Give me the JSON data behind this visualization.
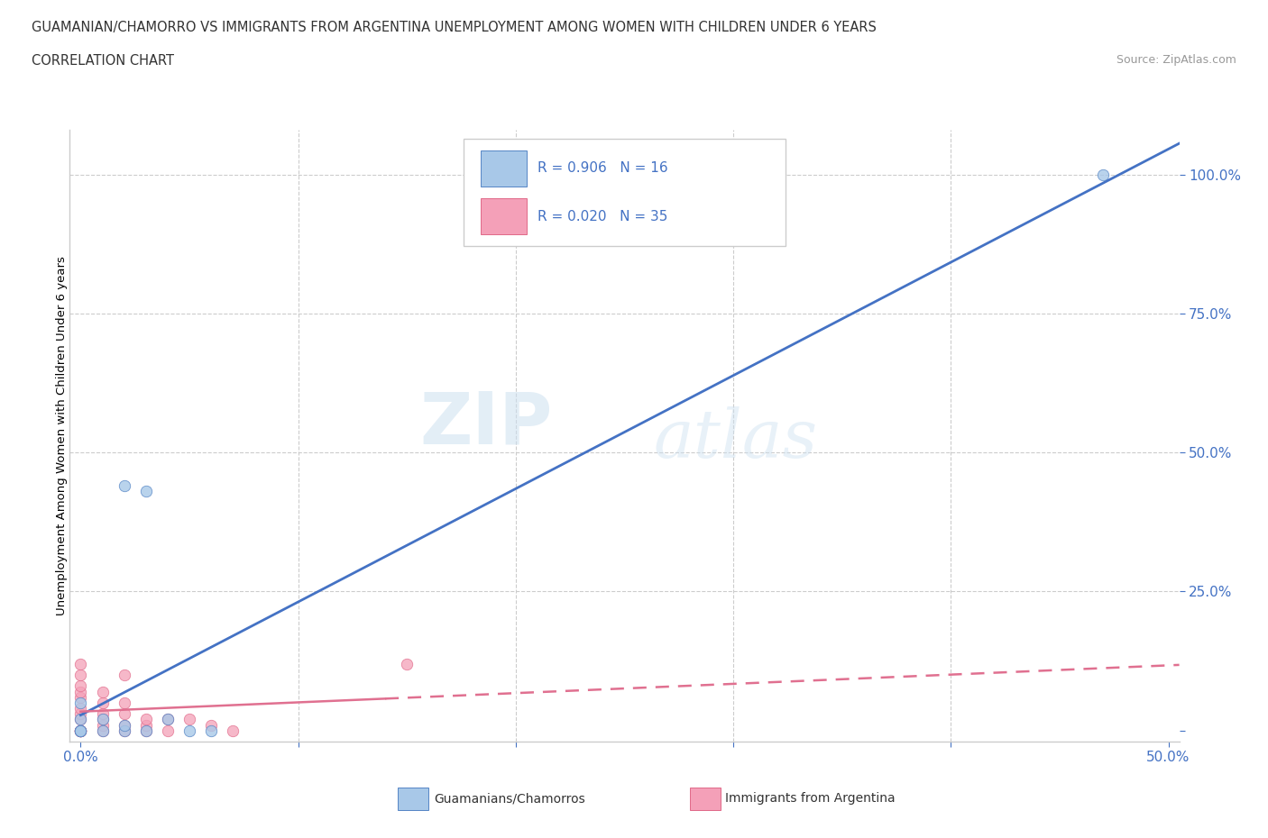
{
  "title_line1": "GUAMANIAN/CHAMORRO VS IMMIGRANTS FROM ARGENTINA UNEMPLOYMENT AMONG WOMEN WITH CHILDREN UNDER 6 YEARS",
  "title_line2": "CORRELATION CHART",
  "source_text": "Source: ZipAtlas.com",
  "ylabel": "Unemployment Among Women with Children Under 6 years",
  "xlim": [
    -0.005,
    0.505
  ],
  "ylim": [
    -0.02,
    1.08
  ],
  "ytick_vals": [
    0.0,
    0.25,
    0.5,
    0.75,
    1.0
  ],
  "xtick_vals": [
    0.0,
    0.1,
    0.2,
    0.3,
    0.4,
    0.5
  ],
  "xtick_labels": [
    "0.0%",
    "",
    "",
    "",
    "",
    "50.0%"
  ],
  "ytick_labels": [
    "",
    "25.0%",
    "50.0%",
    "75.0%",
    "100.0%"
  ],
  "watermark_zip": "ZIP",
  "watermark_atlas": "atlas",
  "legend_r1": "R = 0.906",
  "legend_n1": "N = 16",
  "legend_r2": "R = 0.020",
  "legend_n2": "N = 35",
  "color_blue": "#A8C8E8",
  "color_pink": "#F4A0B8",
  "color_blue_dark": "#5585C5",
  "color_pink_dark": "#E06888",
  "line_blue": "#4472C4",
  "line_pink": "#E07090",
  "guam_x": [
    0.0,
    0.0,
    0.0,
    0.0,
    0.0,
    0.01,
    0.01,
    0.02,
    0.02,
    0.02,
    0.03,
    0.03,
    0.04,
    0.05,
    0.06,
    0.47
  ],
  "guam_y": [
    0.0,
    0.0,
    0.0,
    0.02,
    0.05,
    0.0,
    0.02,
    0.0,
    0.01,
    0.44,
    0.0,
    0.43,
    0.02,
    0.0,
    0.0,
    1.0
  ],
  "arg_x": [
    0.0,
    0.0,
    0.0,
    0.0,
    0.0,
    0.0,
    0.0,
    0.0,
    0.0,
    0.0,
    0.0,
    0.0,
    0.0,
    0.0,
    0.0,
    0.01,
    0.01,
    0.01,
    0.01,
    0.01,
    0.01,
    0.02,
    0.02,
    0.02,
    0.02,
    0.02,
    0.03,
    0.03,
    0.03,
    0.04,
    0.04,
    0.05,
    0.06,
    0.07,
    0.15
  ],
  "arg_y": [
    0.0,
    0.0,
    0.0,
    0.0,
    0.0,
    0.0,
    0.0,
    0.02,
    0.03,
    0.04,
    0.06,
    0.07,
    0.08,
    0.1,
    0.12,
    0.0,
    0.01,
    0.02,
    0.03,
    0.05,
    0.07,
    0.0,
    0.01,
    0.03,
    0.05,
    0.1,
    0.0,
    0.01,
    0.02,
    0.0,
    0.02,
    0.02,
    0.01,
    0.0,
    0.12
  ],
  "background_color": "#ffffff"
}
